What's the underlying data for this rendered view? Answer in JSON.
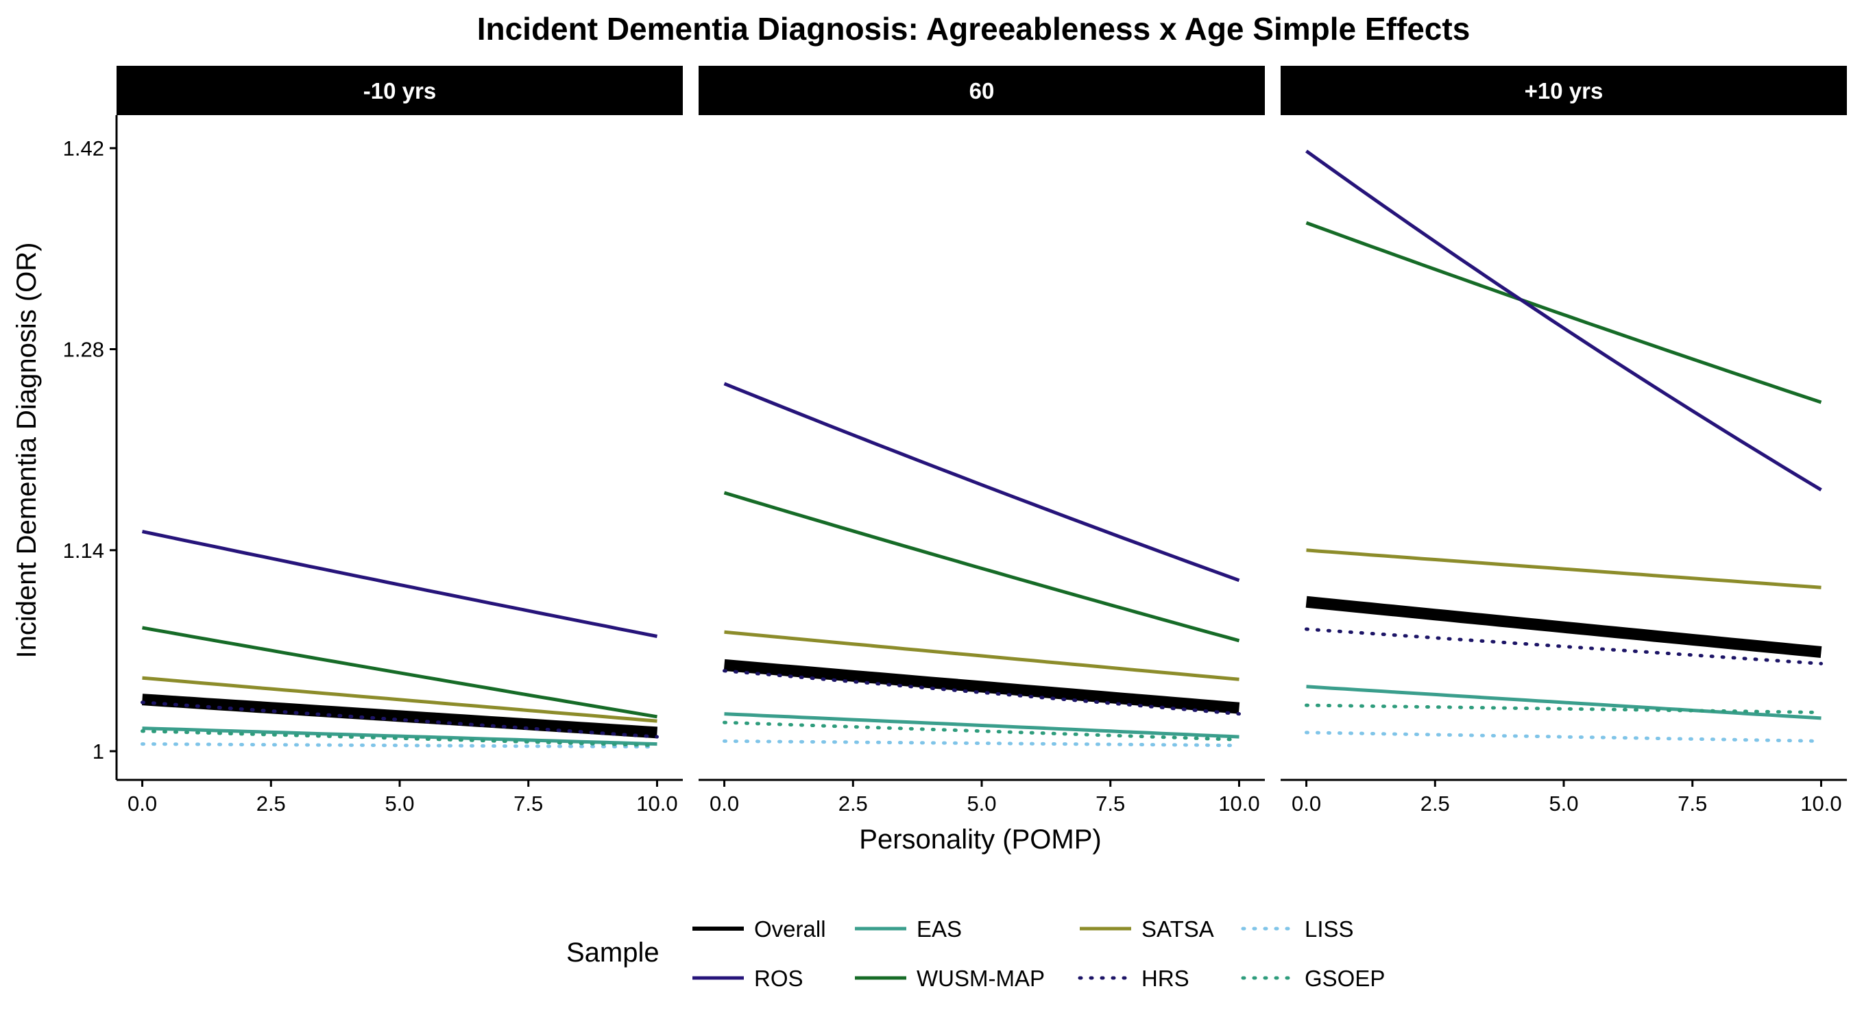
{
  "chart_data": {
    "type": "line",
    "title": "Incident Dementia Diagnosis: Agreeableness x Age Simple Effects",
    "xlabel": "Personality (POMP)",
    "ylabel": "Incident Dementia Diagnosis (OR)",
    "xlim": [
      -0.5,
      10.5
    ],
    "ylim": [
      0.98,
      1.443
    ],
    "x_ticks": [
      0,
      2.5,
      5,
      7.5,
      10
    ],
    "x_tick_labels": [
      "0.0",
      "2.5",
      "5.0",
      "7.5",
      "10.0"
    ],
    "y_ticks": [
      1.0,
      1.14,
      1.28,
      1.42
    ],
    "y_tick_labels": [
      "1",
      "1.14",
      "1.28",
      "1.42"
    ],
    "grid": false,
    "legend": {
      "title": "Sample",
      "position": "bottom",
      "entries": [
        "Overall",
        "ROS",
        "EAS",
        "WUSM-MAP",
        "SATSA",
        "HRS",
        "LISS",
        "GSOEP"
      ]
    },
    "series_styles": [
      {
        "name": "Overall",
        "color": "#000000",
        "dash": "solid",
        "bold": true
      },
      {
        "name": "ROS",
        "color": "#26147a",
        "dash": "solid",
        "bold": false
      },
      {
        "name": "EAS",
        "color": "#3a9e8c",
        "dash": "solid",
        "bold": false
      },
      {
        "name": "WUSM-MAP",
        "color": "#166b27",
        "dash": "solid",
        "bold": false
      },
      {
        "name": "SATSA",
        "color": "#8c8c2a",
        "dash": "solid",
        "bold": false
      },
      {
        "name": "HRS",
        "color": "#1c1466",
        "dash": "dotted",
        "bold": false
      },
      {
        "name": "LISS",
        "color": "#7fc4e8",
        "dash": "dotted",
        "bold": false
      },
      {
        "name": "GSOEP",
        "color": "#2e9c7c",
        "dash": "dotted",
        "bold": false
      }
    ],
    "panels": [
      {
        "label": "-10 yrs",
        "series": [
          {
            "name": "Overall",
            "start": 1.036,
            "end": 1.013
          },
          {
            "name": "ROS",
            "start": 1.153,
            "end": 1.08
          },
          {
            "name": "EAS",
            "start": 1.016,
            "end": 1.005
          },
          {
            "name": "WUSM-MAP",
            "start": 1.086,
            "end": 1.024
          },
          {
            "name": "SATSA",
            "start": 1.051,
            "end": 1.021
          },
          {
            "name": "HRS",
            "start": 1.034,
            "end": 1.01
          },
          {
            "name": "LISS",
            "start": 1.005,
            "end": 1.003
          },
          {
            "name": "GSOEP",
            "start": 1.014,
            "end": 1.004
          }
        ]
      },
      {
        "label": "60",
        "series": [
          {
            "name": "Overall",
            "start": 1.06,
            "end": 1.03
          },
          {
            "name": "ROS",
            "start": 1.256,
            "end": 1.119
          },
          {
            "name": "EAS",
            "start": 1.026,
            "end": 1.01
          },
          {
            "name": "WUSM-MAP",
            "start": 1.18,
            "end": 1.077
          },
          {
            "name": "SATSA",
            "start": 1.083,
            "end": 1.05
          },
          {
            "name": "HRS",
            "start": 1.056,
            "end": 1.026
          },
          {
            "name": "LISS",
            "start": 1.007,
            "end": 1.004
          },
          {
            "name": "GSOEP",
            "start": 1.02,
            "end": 1.008
          }
        ]
      },
      {
        "label": "+10 yrs",
        "series": [
          {
            "name": "Overall",
            "start": 1.104,
            "end": 1.069
          },
          {
            "name": "ROS",
            "start": 1.418,
            "end": 1.182
          },
          {
            "name": "EAS",
            "start": 1.045,
            "end": 1.023
          },
          {
            "name": "WUSM-MAP",
            "start": 1.368,
            "end": 1.243
          },
          {
            "name": "SATSA",
            "start": 1.14,
            "end": 1.114
          },
          {
            "name": "HRS",
            "start": 1.085,
            "end": 1.061
          },
          {
            "name": "LISS",
            "start": 1.013,
            "end": 1.007
          },
          {
            "name": "GSOEP",
            "start": 1.032,
            "end": 1.027
          }
        ]
      }
    ]
  }
}
